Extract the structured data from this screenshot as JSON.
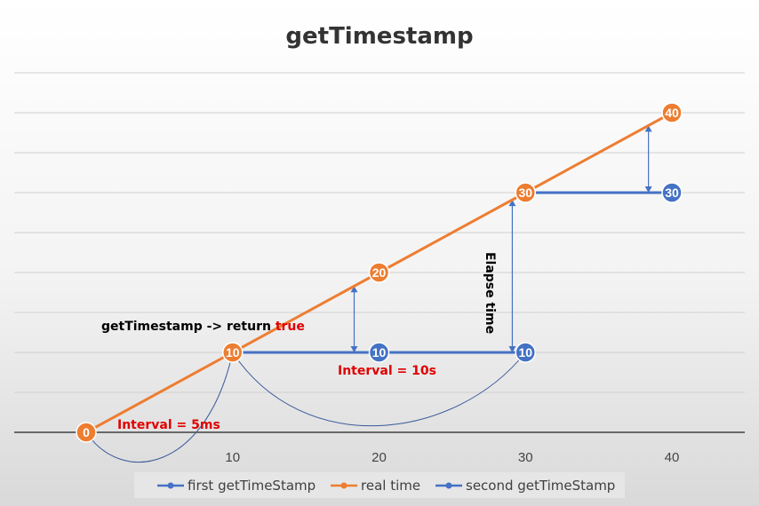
{
  "chart_data": {
    "type": "line",
    "title": "getTimestamp",
    "x_ticks": [
      10,
      20,
      30,
      40
    ],
    "xlim": [
      0,
      40
    ],
    "ylim": [
      0,
      40
    ],
    "grid": true,
    "legend_position": "bottom",
    "series": [
      {
        "name": "first getTimeStamp",
        "color": "#4472C4",
        "points": [
          [
            10,
            10
          ],
          [
            20,
            10
          ],
          [
            30,
            10
          ]
        ]
      },
      {
        "name": "real time",
        "color": "#ED7D31",
        "points": [
          [
            0,
            0
          ],
          [
            10,
            10
          ],
          [
            20,
            20
          ],
          [
            30,
            30
          ],
          [
            40,
            40
          ]
        ]
      },
      {
        "name": "second getTimeStamp",
        "color": "#4472C4",
        "points": [
          [
            30,
            30
          ],
          [
            40,
            30
          ]
        ]
      }
    ],
    "annotations": {
      "call_text": "getTimestamp -> return",
      "call_result": "true",
      "interval_short": "Interval = 5ms",
      "interval_long": "Interval = 10s",
      "elapse": "Elapse time"
    }
  }
}
